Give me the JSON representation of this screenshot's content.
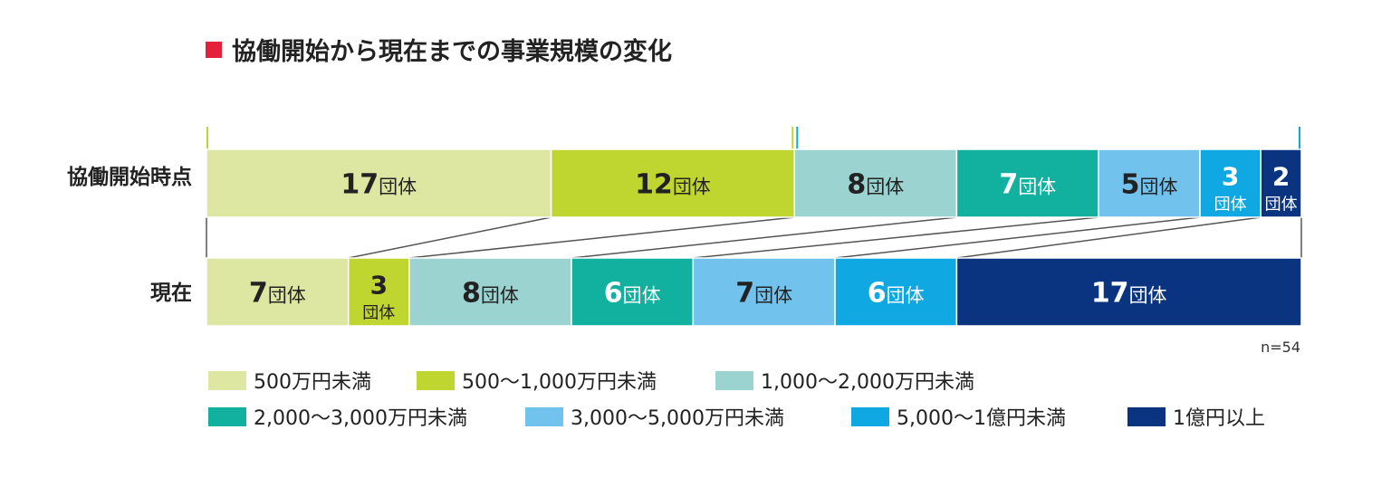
{
  "chart_data": {
    "type": "bar",
    "orientation": "horizontal-stacked-100",
    "title": "協働開始から現在までの事業規模の変化",
    "note": "n=54",
    "unit": "団体",
    "categories": [
      "協働開始時点",
      "現在"
    ],
    "series": [
      {
        "name": "500万円未満",
        "color": "#dde7a1",
        "values": [
          17,
          7
        ]
      },
      {
        "name": "500～1,000万円未満",
        "color": "#bfd630",
        "values": [
          12,
          3
        ]
      },
      {
        "name": "1,000～2,000万円未満",
        "color": "#9ad3d0",
        "values": [
          8,
          8
        ]
      },
      {
        "name": "2,000～3,000万円未満",
        "color": "#12b09f",
        "values": [
          7,
          6
        ]
      },
      {
        "name": "3,000～5,000万円未満",
        "color": "#72c2ee",
        "values": [
          5,
          7
        ]
      },
      {
        "name": "5,000～1億円未満",
        "color": "#10a8e3",
        "values": [
          3,
          6
        ]
      },
      {
        "name": "1億円以上",
        "color": "#0b3480",
        "values": [
          2,
          17
        ]
      }
    ],
    "legend_position": "bottom",
    "colors": {
      "title_marker": "#e5203a",
      "connector": "#555555",
      "bracket_green": "#bfd630",
      "bracket_blue": "#10a8e3"
    }
  }
}
